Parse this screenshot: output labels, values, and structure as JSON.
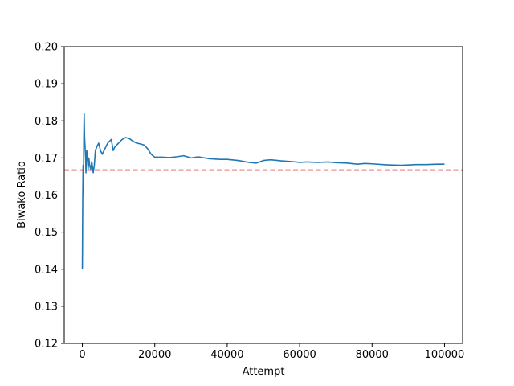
{
  "chart_data": {
    "type": "line",
    "xlabel": "Attempt",
    "ylabel": "Biwako Ratio",
    "xlim": [
      -5000,
      105000
    ],
    "ylim": [
      0.12,
      0.2
    ],
    "xticks": [
      0,
      20000,
      40000,
      60000,
      80000,
      100000
    ],
    "xtick_labels": [
      "0",
      "20000",
      "40000",
      "60000",
      "80000",
      "100000"
    ],
    "yticks": [
      0.12,
      0.13,
      0.14,
      0.15,
      0.16,
      0.17,
      0.18,
      0.19,
      0.2
    ],
    "ytick_labels": [
      "0.12",
      "0.13",
      "0.14",
      "0.15",
      "0.16",
      "0.17",
      "0.18",
      "0.19",
      "0.20"
    ],
    "grid": false,
    "series": [
      {
        "color": "#1f77b4",
        "x": [
          0,
          100,
          200,
          300,
          400,
          500,
          600,
          700,
          800,
          900,
          1000,
          1200,
          1400,
          1600,
          1800,
          2000,
          2300,
          2600,
          3000,
          3300,
          3600,
          4000,
          4500,
          5000,
          5500,
          6000,
          7000,
          8000,
          8500,
          9000,
          10000,
          11000,
          12000,
          13000,
          14000,
          15000,
          16000,
          17000,
          18000,
          19000,
          20000,
          22000,
          24000,
          26000,
          28000,
          30000,
          32000,
          35000,
          38000,
          40000,
          43000,
          46000,
          48000,
          50000,
          52000,
          55000,
          58000,
          60000,
          62000,
          65000,
          68000,
          70000,
          73000,
          76000,
          78000,
          80000,
          83000,
          85000,
          88000,
          90000,
          92000,
          95000,
          98000,
          100000
        ],
        "y": [
          0.14,
          0.158,
          0.168,
          0.16,
          0.175,
          0.182,
          0.176,
          0.174,
          0.172,
          0.17,
          0.166,
          0.172,
          0.171,
          0.167,
          0.17,
          0.168,
          0.167,
          0.169,
          0.166,
          0.168,
          0.172,
          0.173,
          0.174,
          0.172,
          0.171,
          0.172,
          0.174,
          0.175,
          0.172,
          0.173,
          0.174,
          0.175,
          0.1755,
          0.1752,
          0.1745,
          0.174,
          0.1738,
          0.1735,
          0.1725,
          0.171,
          0.1702,
          0.1702,
          0.1701,
          0.1703,
          0.1706,
          0.17,
          0.1703,
          0.1698,
          0.1696,
          0.1696,
          0.1693,
          0.1688,
          0.1686,
          0.1693,
          0.1695,
          0.1692,
          0.169,
          0.1688,
          0.1689,
          0.1688,
          0.1689,
          0.1687,
          0.1686,
          0.1683,
          0.1685,
          0.1684,
          0.1682,
          0.1681,
          0.168,
          0.1681,
          0.1682,
          0.1682,
          0.1683,
          0.1683
        ]
      }
    ],
    "reference_line": {
      "y": 0.1667,
      "color": "#d62728",
      "style": "dashed"
    }
  }
}
